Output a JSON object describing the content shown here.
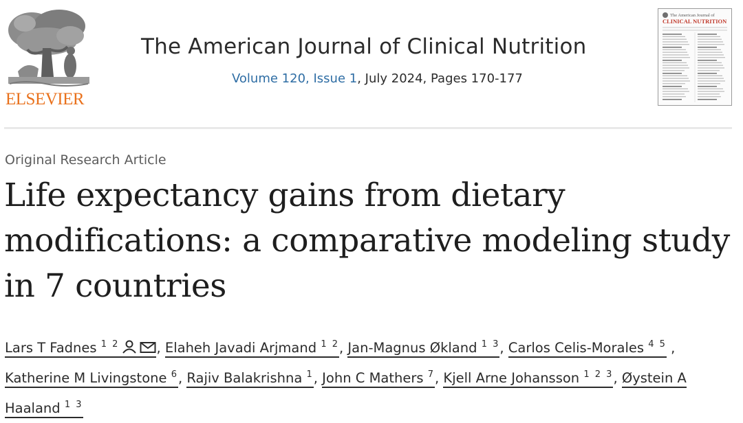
{
  "publisher": {
    "name": "ELSEVIER",
    "brand_color": "#e9711c",
    "logo_icon": "tree-of-knowledge-icon"
  },
  "journal": {
    "title": "The American Journal of Clinical Nutrition",
    "issue_link": "Volume 120, Issue 1",
    "issue_rest": ", July 2024, Pages 170-177",
    "link_color": "#2e6da4"
  },
  "cover": {
    "line1": "The American Journal of",
    "line2": "CLINICAL NUTRITION"
  },
  "article": {
    "type": "Original Research Article",
    "title": "Life expectancy gains from dietary modifications: a comparative modeling study in 7 countries"
  },
  "authors": [
    {
      "name": "Lars T Fadnes",
      "aff": "1 2",
      "sep": ", "
    },
    {
      "name": "Elaheh Javadi Arjmand",
      "aff": "1 2",
      "sep": ", "
    },
    {
      "name": "Jan-Magnus Økland",
      "aff": "1 3",
      "sep": ", "
    },
    {
      "name": "Carlos Celis-Morales",
      "aff": "4 5",
      "sep": " , "
    },
    {
      "name": "Katherine M Livingstone",
      "aff": "6",
      "sep": ", "
    },
    {
      "name": "Rajiv Balakrishna",
      "aff": "1",
      "sep": ", "
    },
    {
      "name": "John C Mathers",
      "aff": "7",
      "sep": ", "
    },
    {
      "name": "Kjell Arne Johansson",
      "aff": "1 2 3",
      "sep": ", "
    },
    {
      "name": "Øystein A Haaland",
      "aff": "1 3",
      "sep": ""
    }
  ]
}
